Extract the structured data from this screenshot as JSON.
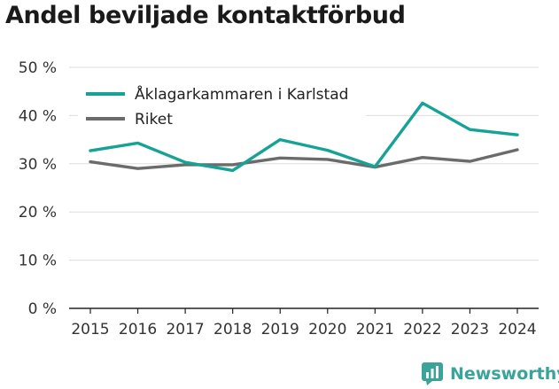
{
  "title": "Andel beviljade kontaktförbud",
  "brand": {
    "name": "Newsworthy",
    "icon": "newsworthy-logo-icon"
  },
  "colors": {
    "karlstad": "#16a397",
    "riket": "#6b6b6b",
    "grid": "#dddddd",
    "brand": "#3aa39a"
  },
  "chart_data": {
    "type": "line",
    "x": [
      2015,
      2016,
      2017,
      2018,
      2019,
      2020,
      2021,
      2022,
      2023,
      2024
    ],
    "y_ticks": [
      "0 %",
      "10 %",
      "20 %",
      "30 %",
      "40 %",
      "50 %"
    ],
    "ylim": [
      0,
      50
    ],
    "legend_position": "top-left",
    "grid": true,
    "series": [
      {
        "name": "Åklagarkammaren i Karlstad",
        "color": "#16a397",
        "values": [
          32.7,
          34.3,
          30.3,
          28.6,
          35.0,
          32.8,
          29.4,
          42.6,
          37.1,
          36.0
        ]
      },
      {
        "name": "Riket",
        "color": "#6b6b6b",
        "values": [
          30.4,
          29.0,
          29.8,
          29.8,
          31.2,
          30.9,
          29.3,
          31.3,
          30.5,
          32.9
        ]
      }
    ]
  }
}
